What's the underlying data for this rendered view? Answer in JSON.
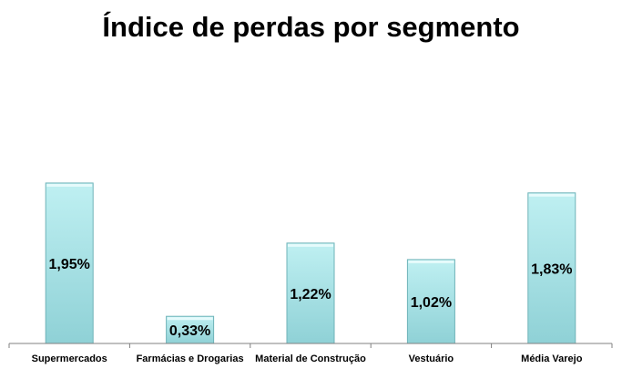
{
  "chart_data": {
    "type": "bar",
    "title": "Índice de perdas por segmento",
    "categories": [
      "Supermercados",
      "Farmácias e Drogarias",
      "Material de Construção",
      "Vestuário",
      "Média Varejo"
    ],
    "values": [
      1.95,
      0.33,
      1.22,
      1.02,
      1.83
    ],
    "data_labels": [
      "1,95%",
      "0,33%",
      "1,22%",
      "1,02%",
      "1,83%"
    ],
    "unit": "%",
    "xlabel": "",
    "ylabel": "",
    "ylim": [
      0,
      2.3
    ],
    "grid": false,
    "legend": "none",
    "colors": {
      "bar_fill_top": "#bff0f2",
      "bar_fill_bottom": "#8fd1d6",
      "bar_stroke": "#6fb3b8",
      "axis": "#808080",
      "text": "#000000"
    }
  }
}
